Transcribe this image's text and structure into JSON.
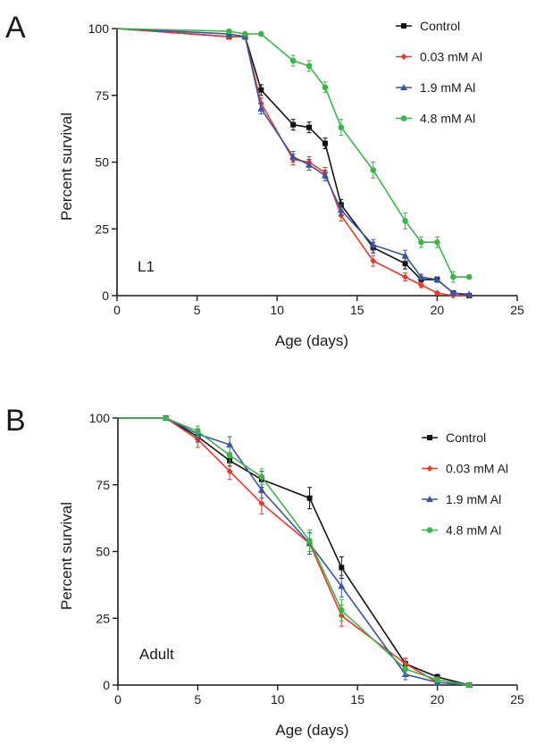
{
  "chart_data": [
    {
      "type": "line",
      "panel": "A",
      "annotation": "L1",
      "xlabel": "Age (days)",
      "ylabel": "Percent survival",
      "xlim": [
        0,
        25
      ],
      "ylim": [
        0,
        100
      ],
      "xticks": [
        0,
        5,
        10,
        15,
        20,
        25
      ],
      "yticks": [
        0,
        25,
        50,
        75,
        100
      ],
      "grid": false,
      "legend_position": "top-right",
      "series": [
        {
          "name": "Control",
          "color": "#111111",
          "marker": "square",
          "x": [
            0,
            7,
            8,
            9,
            11,
            12,
            13,
            14,
            16,
            18,
            19,
            20,
            21,
            22
          ],
          "y": [
            100,
            97,
            97,
            77,
            64,
            63,
            57,
            34,
            18,
            12,
            6,
            6,
            1,
            0
          ],
          "err": [
            0,
            1,
            1,
            2,
            2,
            2,
            2,
            2,
            2,
            2,
            1,
            1,
            0.5,
            0
          ]
        },
        {
          "name": "0.03 mM Al",
          "color": "#e8392b",
          "marker": "diamond",
          "x": [
            0,
            7,
            8,
            9,
            11,
            12,
            13,
            14,
            16,
            18,
            19,
            20,
            21,
            22
          ],
          "y": [
            100,
            97,
            97,
            72,
            51,
            50,
            46,
            30,
            13,
            7,
            4,
            1,
            0,
            0
          ],
          "err": [
            0,
            1,
            1,
            2,
            2,
            2,
            2,
            2,
            2,
            1.5,
            1,
            0.5,
            0,
            0
          ]
        },
        {
          "name": "1.9 mM Al",
          "color": "#3a55a4",
          "marker": "triangle",
          "x": [
            0,
            7,
            8,
            9,
            11,
            12,
            13,
            14,
            16,
            18,
            19,
            20,
            21,
            22
          ],
          "y": [
            100,
            98,
            97,
            70,
            52,
            49,
            45,
            32,
            19,
            15,
            7,
            6,
            1,
            0.5
          ],
          "err": [
            0,
            1,
            1,
            2,
            2,
            2,
            2,
            2,
            2,
            2,
            1,
            1,
            0.5,
            0
          ]
        },
        {
          "name": "4.8 mM Al",
          "color": "#3ab54a",
          "marker": "circle",
          "x": [
            0,
            7,
            8,
            9,
            11,
            12,
            13,
            14,
            16,
            18,
            19,
            20,
            21,
            22
          ],
          "y": [
            100,
            99,
            98,
            98,
            88,
            86,
            78,
            63,
            47,
            28,
            20,
            20,
            7,
            7
          ],
          "err": [
            0,
            0.5,
            0.5,
            0.5,
            2,
            2,
            2,
            3,
            3,
            3,
            2,
            2,
            2,
            0
          ]
        }
      ]
    },
    {
      "type": "line",
      "panel": "B",
      "annotation": "Adult",
      "xlabel": "Age (days)",
      "ylabel": "Percent survival",
      "xlim": [
        0,
        25
      ],
      "ylim": [
        0,
        100
      ],
      "xticks": [
        0,
        5,
        10,
        15,
        20,
        25
      ],
      "yticks": [
        0,
        25,
        50,
        75,
        100
      ],
      "grid": false,
      "legend_position": "top-right",
      "series": [
        {
          "name": "Control",
          "color": "#111111",
          "marker": "square",
          "x": [
            0,
            3,
            5,
            7,
            9,
            12,
            14,
            18,
            20,
            22
          ],
          "y": [
            100,
            100,
            93,
            84,
            77,
            70,
            44,
            8,
            3,
            0
          ],
          "err": [
            0,
            0,
            2,
            2,
            3,
            4,
            4,
            2,
            1,
            0
          ]
        },
        {
          "name": "0.03 mM Al",
          "color": "#e8392b",
          "marker": "diamond",
          "x": [
            0,
            3,
            5,
            7,
            9,
            12,
            14,
            18,
            20,
            22
          ],
          "y": [
            100,
            100,
            92,
            80,
            68,
            53,
            26,
            8,
            1,
            0
          ],
          "err": [
            0,
            0,
            3,
            3,
            4,
            4,
            4,
            2,
            1,
            0
          ]
        },
        {
          "name": "1.9 mM Al",
          "color": "#3a55a4",
          "marker": "triangle",
          "x": [
            0,
            3,
            5,
            7,
            9,
            12,
            14,
            18,
            20,
            22
          ],
          "y": [
            100,
            100,
            94,
            90,
            73,
            53,
            37,
            4,
            1,
            0
          ],
          "err": [
            0,
            0,
            2,
            3,
            3,
            4,
            4,
            2,
            1,
            0
          ]
        },
        {
          "name": "4.8 mM Al",
          "color": "#3ab54a",
          "marker": "circle",
          "x": [
            0,
            3,
            5,
            7,
            9,
            12,
            14,
            18,
            20,
            22
          ],
          "y": [
            100,
            100,
            95,
            86,
            78,
            54,
            28,
            6,
            2,
            0
          ],
          "err": [
            0,
            0,
            2,
            3,
            3,
            4,
            4,
            2,
            1,
            0
          ]
        }
      ]
    }
  ]
}
